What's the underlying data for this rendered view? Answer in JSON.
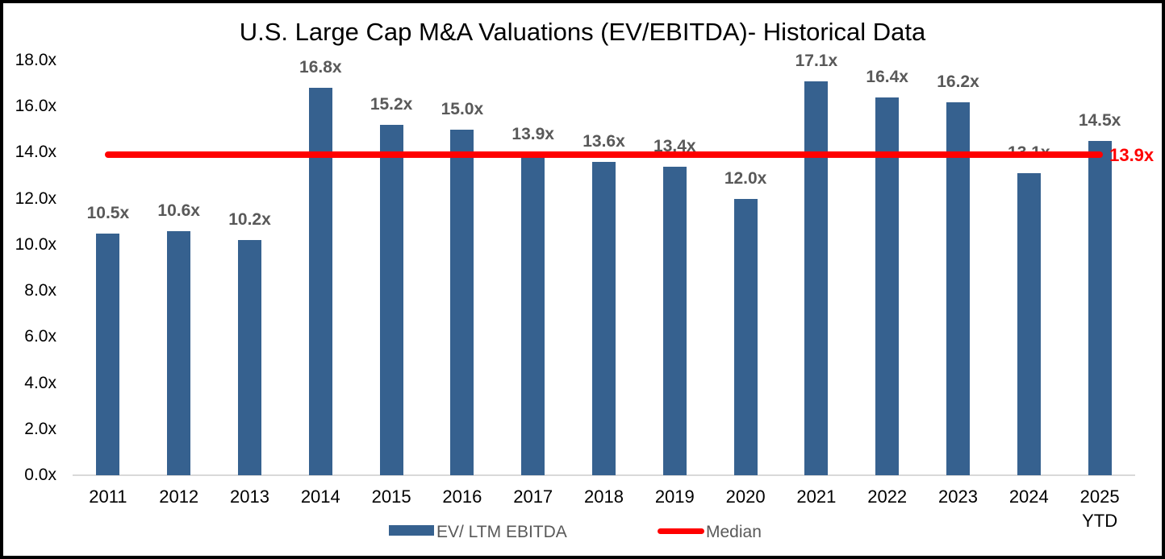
{
  "title": "U.S. Large Cap M&A Valuations (EV/EBITDA)- Historical Data",
  "legend": {
    "series_label": "EV/ LTM EBITDA",
    "median_label": "Median"
  },
  "chart_data": {
    "type": "bar",
    "title": "U.S. Large Cap M&A Valuations (EV/EBITDA)- Historical Data",
    "categories": [
      "2011",
      "2012",
      "2013",
      "2014",
      "2015",
      "2016",
      "2017",
      "2018",
      "2019",
      "2020",
      "2021",
      "2022",
      "2023",
      "2024",
      "2025 YTD"
    ],
    "series": [
      {
        "name": "EV/ LTM EBITDA",
        "values": [
          10.5,
          10.6,
          10.2,
          16.8,
          15.2,
          15.0,
          13.9,
          13.6,
          13.4,
          12.0,
          17.1,
          16.4,
          16.2,
          13.1,
          14.5
        ],
        "labels": [
          "10.5x",
          "10.6x",
          "10.2x",
          "16.8x",
          "15.2x",
          "15.0x",
          "13.9x",
          "13.6x",
          "13.4x",
          "12.0x",
          "17.1x",
          "16.4x",
          "16.2x",
          "13.1x",
          "14.5x"
        ]
      }
    ],
    "median_line": {
      "name": "Median",
      "value": 13.9,
      "label": "13.9x"
    },
    "yticks": [
      {
        "value": 0,
        "label": "0.0x"
      },
      {
        "value": 2,
        "label": "2.0x"
      },
      {
        "value": 4,
        "label": "4.0x"
      },
      {
        "value": 6,
        "label": "6.0x"
      },
      {
        "value": 8,
        "label": "8.0x"
      },
      {
        "value": 10,
        "label": "10.0x"
      },
      {
        "value": 12,
        "label": "12.0x"
      },
      {
        "value": 14,
        "label": "14.0x"
      },
      {
        "value": 16,
        "label": "16.0x"
      },
      {
        "value": 18,
        "label": "18.0x"
      }
    ],
    "ylim": [
      0,
      18
    ],
    "grid": false,
    "legend_position": "bottom",
    "colors": {
      "bar": "#36618F",
      "median": "#FF0000",
      "data_label": "#595959",
      "median_label": "#FF0000",
      "axis_label": "#000000",
      "legend_text": "#595959",
      "baseline": "#D9D9D9"
    }
  }
}
